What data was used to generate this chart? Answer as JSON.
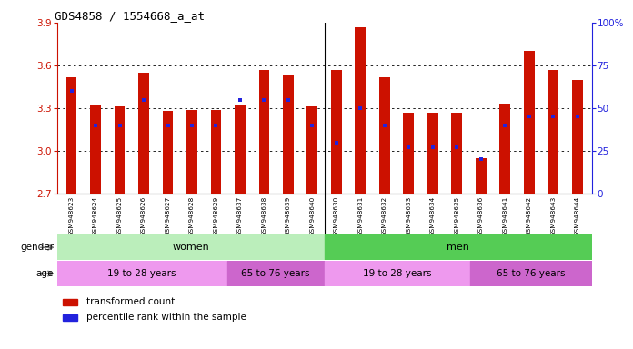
{
  "title": "GDS4858 / 1554668_a_at",
  "samples": [
    "GSM948623",
    "GSM948624",
    "GSM948625",
    "GSM948626",
    "GSM948627",
    "GSM948628",
    "GSM948629",
    "GSM948637",
    "GSM948638",
    "GSM948639",
    "GSM948640",
    "GSM948630",
    "GSM948631",
    "GSM948632",
    "GSM948633",
    "GSM948634",
    "GSM948635",
    "GSM948636",
    "GSM948641",
    "GSM948642",
    "GSM948643",
    "GSM948644"
  ],
  "transformed_count": [
    3.52,
    3.32,
    3.31,
    3.55,
    3.28,
    3.29,
    3.29,
    3.32,
    3.57,
    3.53,
    3.31,
    3.57,
    3.87,
    3.52,
    3.27,
    3.27,
    3.27,
    2.95,
    3.33,
    3.7,
    3.57,
    3.5
  ],
  "percentile_rank": [
    60,
    40,
    40,
    55,
    40,
    40,
    40,
    55,
    55,
    55,
    40,
    30,
    50,
    40,
    27,
    27,
    27,
    20,
    40,
    45,
    45,
    45
  ],
  "ymin": 2.7,
  "ymax": 3.9,
  "bar_color": "#cc1100",
  "blue_color": "#2222dd",
  "bg_color": "#ffffff",
  "plot_bg": "#ffffff",
  "tick_bg": "#d8d8d8",
  "left_yticks": [
    2.7,
    3.0,
    3.3,
    3.6,
    3.9
  ],
  "left_ylabels": [
    "2.7",
    "3.0",
    "3.3",
    "3.6",
    "3.9"
  ],
  "right_yticks": [
    0,
    25,
    50,
    75,
    100
  ],
  "right_ylabels": [
    "0",
    "25",
    "50",
    "75",
    "100%"
  ],
  "gender_groups": [
    {
      "label": "women",
      "start": 0,
      "end": 11,
      "color": "#bbeebb"
    },
    {
      "label": "men",
      "start": 11,
      "end": 22,
      "color": "#55cc55"
    }
  ],
  "age_groups": [
    {
      "label": "19 to 28 years",
      "start": 0,
      "end": 7,
      "color": "#ee99ee"
    },
    {
      "label": "65 to 76 years",
      "start": 7,
      "end": 11,
      "color": "#cc66cc"
    },
    {
      "label": "19 to 28 years",
      "start": 11,
      "end": 17,
      "color": "#ee99ee"
    },
    {
      "label": "65 to 76 years",
      "start": 17,
      "end": 22,
      "color": "#cc66cc"
    }
  ]
}
